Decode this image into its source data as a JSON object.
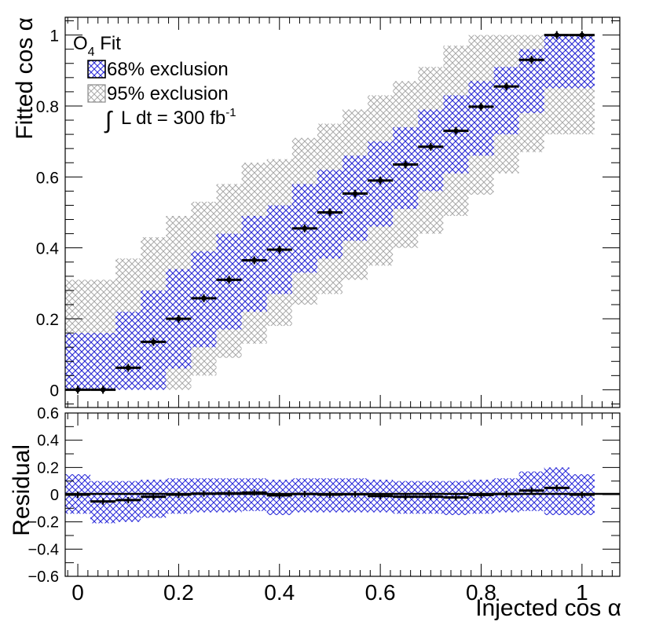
{
  "chart_data": [
    {
      "type": "scatter",
      "panel": "main",
      "ylabel": "Fitted cos α",
      "ylim": [
        -0.05,
        1.05
      ],
      "xlim": [
        -0.025,
        1.075
      ],
      "y_ticks": [
        0,
        0.2,
        0.4,
        0.6,
        0.8,
        1
      ],
      "y_tick_labels": [
        "0",
        "0.2",
        "0.4",
        "0.6",
        "0.8",
        "1"
      ],
      "legend": {
        "placement": "top-left",
        "fit_label_main": "O",
        "fit_label_sub": "4",
        "fit_label_rest": " Fit",
        "band68_label": "68% exclusion",
        "band95_label": "95% exclusion",
        "lumi_integral": "∫",
        "lumi_main": "L dt = 300 fb",
        "lumi_sup": "-1"
      },
      "colors": {
        "band68": "#2b2bd9",
        "band95": "#a8a8a8",
        "points": "#000000"
      },
      "x": [
        0.0,
        0.05,
        0.1,
        0.15,
        0.2,
        0.25,
        0.3,
        0.35,
        0.4,
        0.45,
        0.5,
        0.55,
        0.6,
        0.65,
        0.7,
        0.75,
        0.8,
        0.85,
        0.9,
        0.95,
        1.0
      ],
      "series": [
        {
          "name": "O4 Fit",
          "values": [
            0.0,
            0.0,
            0.062,
            0.135,
            0.2,
            0.258,
            0.31,
            0.365,
            0.395,
            0.455,
            0.5,
            0.553,
            0.59,
            0.635,
            0.685,
            0.73,
            0.798,
            0.855,
            0.93,
            1.0,
            1.0
          ]
        },
        {
          "name": "68% exclusion",
          "low": [
            0.0,
            0.0,
            0.0,
            0.0,
            0.06,
            0.12,
            0.17,
            0.22,
            0.27,
            0.33,
            0.37,
            0.42,
            0.46,
            0.51,
            0.56,
            0.61,
            0.66,
            0.72,
            0.78,
            0.85,
            0.85
          ],
          "high": [
            0.16,
            0.16,
            0.22,
            0.28,
            0.34,
            0.39,
            0.44,
            0.49,
            0.52,
            0.58,
            0.62,
            0.66,
            0.7,
            0.74,
            0.79,
            0.83,
            0.87,
            0.91,
            0.96,
            1.0,
            1.0
          ]
        },
        {
          "name": "95% exclusion",
          "low": [
            0.0,
            0.0,
            0.0,
            0.0,
            0.0,
            0.04,
            0.09,
            0.13,
            0.18,
            0.24,
            0.27,
            0.31,
            0.35,
            0.4,
            0.44,
            0.49,
            0.55,
            0.61,
            0.67,
            0.72,
            0.72
          ],
          "high": [
            0.31,
            0.31,
            0.37,
            0.43,
            0.49,
            0.53,
            0.58,
            0.64,
            0.65,
            0.71,
            0.75,
            0.79,
            0.83,
            0.87,
            0.91,
            0.97,
            1.0,
            1.0,
            1.0,
            1.0,
            1.0
          ]
        }
      ]
    },
    {
      "type": "scatter",
      "panel": "residual",
      "xlabel": "Injected cos α",
      "ylabel": "Residual",
      "ylim": [
        -0.6,
        0.6
      ],
      "xlim": [
        -0.025,
        1.075
      ],
      "x_ticks": [
        0,
        0.2,
        0.4,
        0.6,
        0.8,
        1
      ],
      "x_tick_labels": [
        "0",
        "0.2",
        "0.4",
        "0.6",
        "0.8",
        "1"
      ],
      "y_ticks": [
        -0.6,
        -0.4,
        -0.2,
        0,
        0.2,
        0.4,
        0.6
      ],
      "y_tick_labels": [
        "−0.6",
        "−0.4",
        "−0.2",
        "0",
        "0.2",
        "0.4",
        "0.6"
      ],
      "x": [
        0.0,
        0.05,
        0.1,
        0.15,
        0.2,
        0.25,
        0.3,
        0.35,
        0.4,
        0.45,
        0.5,
        0.55,
        0.6,
        0.65,
        0.7,
        0.75,
        0.8,
        0.85,
        0.9,
        0.95,
        1.0
      ],
      "series": [
        {
          "name": "residual",
          "values": [
            0.0,
            -0.05,
            -0.04,
            -0.015,
            0.0,
            0.008,
            0.01,
            0.015,
            -0.005,
            0.005,
            0.0,
            0.003,
            -0.01,
            -0.015,
            -0.015,
            -0.02,
            -0.002,
            0.005,
            0.03,
            0.05,
            0.0
          ]
        },
        {
          "name": "band",
          "low": [
            -0.14,
            -0.21,
            -0.2,
            -0.17,
            -0.14,
            -0.13,
            -0.13,
            -0.12,
            -0.15,
            -0.13,
            -0.13,
            -0.13,
            -0.13,
            -0.14,
            -0.14,
            -0.15,
            -0.14,
            -0.13,
            -0.12,
            -0.15,
            -0.15
          ],
          "high": [
            0.15,
            0.1,
            0.1,
            0.11,
            0.12,
            0.12,
            0.12,
            0.12,
            0.11,
            0.12,
            0.12,
            0.12,
            0.11,
            0.1,
            0.1,
            0.1,
            0.11,
            0.12,
            0.17,
            0.2,
            0.15
          ]
        }
      ]
    }
  ]
}
